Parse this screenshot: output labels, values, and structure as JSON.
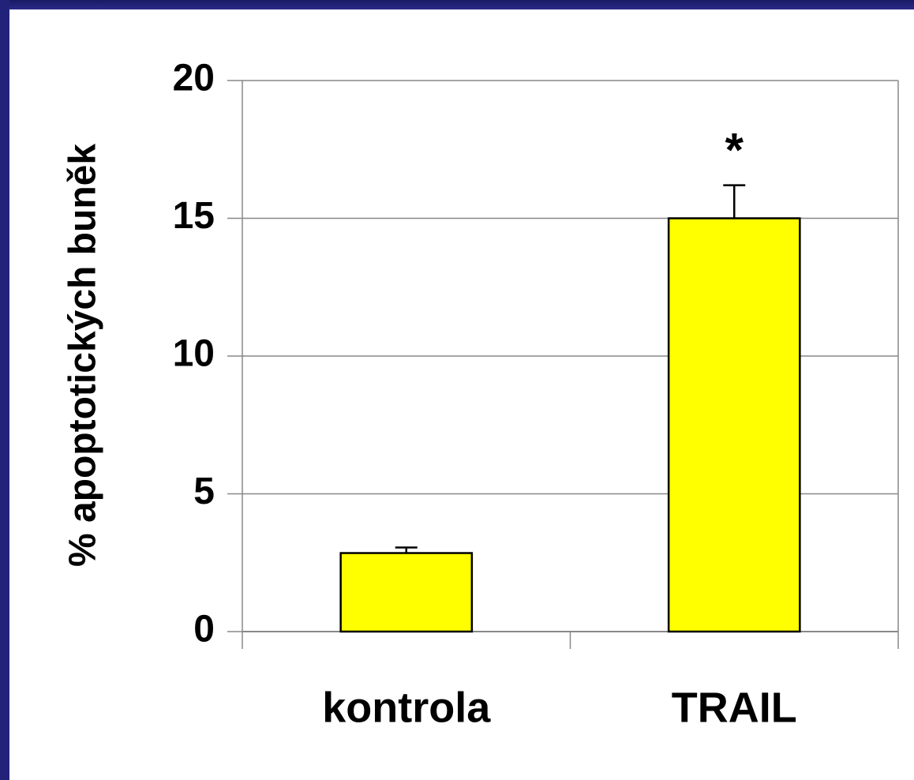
{
  "chart_data": {
    "type": "bar",
    "y_label": "% apoptotických buněk",
    "categories": [
      "kontrola",
      "TRAIL"
    ],
    "values": [
      2.85,
      15
    ],
    "errors": [
      0.2,
      1.2
    ],
    "color": "#ffff00",
    "annotation": "*",
    "ylim": [
      0,
      20
    ],
    "yticks": [
      0,
      5,
      10,
      15,
      20
    ],
    "grid": true
  }
}
